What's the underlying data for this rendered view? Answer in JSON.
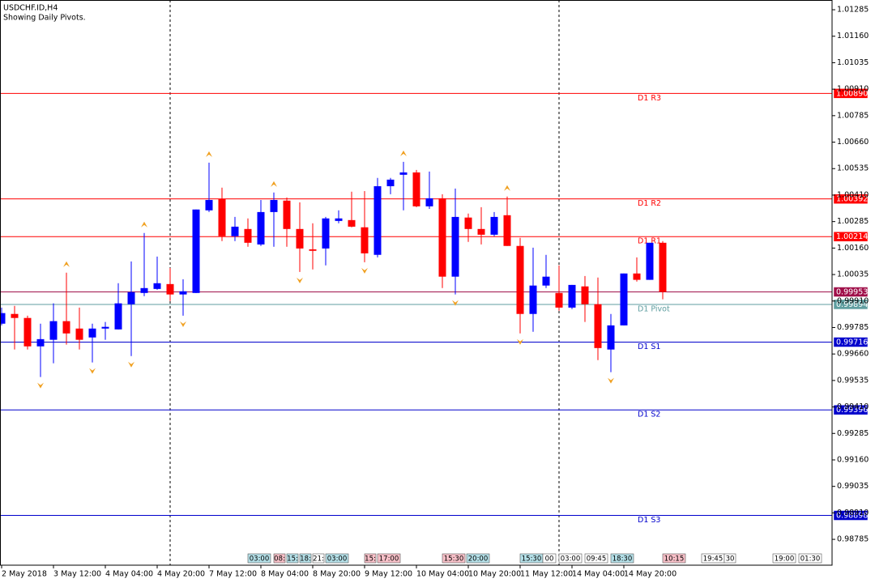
{
  "chart_data": {
    "type": "candlestick",
    "title": "USDCHF.ID,H4",
    "subtitle": "Showing Daily Pivots.",
    "categories": [
      "2 May 2018",
      null,
      null,
      null,
      "3 May 12:00",
      null,
      null,
      null,
      "4 May 04:00",
      null,
      null,
      null,
      "4 May 20:00",
      null,
      null,
      null,
      "7 May 12:00",
      null,
      null,
      null,
      "8 May 04:00",
      null,
      null,
      null,
      "8 May 20:00",
      null,
      null,
      null,
      "9 May 12:00",
      null,
      null,
      null,
      "10 May 04:00",
      null,
      null,
      null,
      "10 May 20:00",
      null,
      null,
      null,
      "11 May 12:00",
      null,
      null,
      null,
      "14 May 04:00",
      null,
      null,
      null,
      "14 May 20:00",
      null,
      null,
      null
    ],
    "open": [
      0.99803,
      0.99849,
      0.9983,
      0.99696,
      0.99727,
      0.99815,
      0.9978,
      0.99738,
      0.9978,
      0.99776,
      0.99895,
      0.99948,
      0.99967,
      0.9999,
      0.99941,
      0.99948,
      1.00338,
      1.00391,
      1.00216,
      1.0025,
      1.00177,
      1.0033,
      1.00384,
      1.0025,
      1.00154,
      1.00158,
      1.00288,
      1.00292,
      1.00258,
      1.00128,
      1.00452,
      1.00506,
      1.00517,
      1.00357,
      1.00395,
      1.00025,
      1.00304,
      1.0025,
      1.00223,
      1.00315,
      1.0017,
      0.99849,
      0.99983,
      0.99948,
      0.99879,
      0.99979,
      0.99895,
      0.99681,
      0.99795,
      1.0004,
      1.0001,
      1.00185
    ],
    "high": [
      0.99879,
      0.99887,
      0.99841,
      0.99803,
      0.99899,
      1.00044,
      0.99879,
      0.99803,
      0.99811,
      0.99994,
      1.00097,
      1.00231,
      1.0012,
      1.00066,
      1.00013,
      1.00342,
      1.00563,
      1.00445,
      1.00307,
      1.003,
      1.00387,
      1.00422,
      1.00399,
      1.00376,
      1.00277,
      1.00307,
      1.00338,
      1.00426,
      1.00429,
      1.00491,
      1.00491,
      1.00567,
      1.00529,
      1.00521,
      1.00414,
      1.00441,
      1.00323,
      1.00353,
      1.0033,
      1.00403,
      1.00208,
      1.00162,
      1.00128,
      1.00078,
      0.99986,
      1.00028,
      1.00021,
      0.99849,
      1.0004,
      1.00116,
      1.00185,
      1.00193
    ],
    "low": [
      0.99795,
      0.99681,
      0.99681,
      0.99551,
      0.99616,
      0.99704,
      0.99681,
      0.9962,
      0.99727,
      0.99776,
      0.9965,
      0.99933,
      0.99963,
      0.9991,
      0.99841,
      0.99948,
      1.0033,
      1.00193,
      1.00193,
      1.00166,
      1.0017,
      1.00166,
      1.00166,
      1.00047,
      1.00059,
      1.00078,
      1.00277,
      1.00258,
      1.00093,
      1.00116,
      1.00414,
      1.00338,
      1.00353,
      1.00345,
      0.99971,
      0.99941,
      1.00189,
      1.00177,
      1.00216,
      1.0017,
      0.99757,
      0.99765,
      0.99971,
      0.99864,
      0.99872,
      0.99811,
      0.99631,
      0.99574,
      0.99795,
      1.00002,
      1.0001,
      0.99918
    ],
    "close": [
      0.99853,
      0.9983,
      0.99696,
      0.9973,
      0.99815,
      0.99757,
      0.99727,
      0.9978,
      0.99788,
      0.99899,
      0.99952,
      0.99971,
      0.99994,
      0.99941,
      0.99956,
      1.00342,
      1.00387,
      1.00216,
      1.00261,
      1.00185,
      1.0033,
      1.00387,
      1.0025,
      1.00158,
      1.00147,
      1.003,
      1.003,
      1.00261,
      1.00135,
      1.00452,
      1.00483,
      1.00517,
      1.00357,
      1.00395,
      1.00025,
      1.00307,
      1.0025,
      1.00223,
      1.00307,
      1.0017,
      0.99849,
      0.99983,
      1.00025,
      0.99879,
      0.99986,
      0.99895,
      0.99688,
      0.99795,
      1.0004,
      1.0001,
      1.00185,
      0.99953
    ],
    "up_color": "#0000ff",
    "down_color": "#ff0000",
    "fractal_color": "#f0a020",
    "ylim": [
      0.98663,
      1.01331
    ],
    "yticks": [
      {
        "value": 1.01285,
        "label": "1.01285"
      },
      {
        "value": 1.0116,
        "label": "1.01160"
      },
      {
        "value": 1.01035,
        "label": "1.01035"
      },
      {
        "value": 1.0091,
        "label": "1.00910"
      },
      {
        "value": 1.00785,
        "label": "1.00785"
      },
      {
        "value": 1.0066,
        "label": "1.00660"
      },
      {
        "value": 1.00535,
        "label": "1.00535"
      },
      {
        "value": 1.0041,
        "label": "1.00410"
      },
      {
        "value": 1.00285,
        "label": "1.00285"
      },
      {
        "value": 1.0016,
        "label": "1.00160"
      },
      {
        "value": 1.00035,
        "label": "1.00035"
      },
      {
        "value": 0.9991,
        "label": "0.99910"
      },
      {
        "value": 0.99785,
        "label": "0.99785"
      },
      {
        "value": 0.9966,
        "label": "0.99660"
      },
      {
        "value": 0.99535,
        "label": "0.99535"
      },
      {
        "value": 0.9941,
        "label": "0.99410"
      },
      {
        "value": 0.99285,
        "label": "0.99285"
      },
      {
        "value": 0.9916,
        "label": "0.99160"
      },
      {
        "value": 0.99035,
        "label": "0.99035"
      },
      {
        "value": 0.9891,
        "label": "0.98910"
      },
      {
        "value": 0.98785,
        "label": "0.98785"
      }
    ],
    "levels": [
      {
        "name": "D1 R3",
        "value": 1.0089,
        "label": "1.00890",
        "color": "#ff0000"
      },
      {
        "name": "D1 R2",
        "value": 1.00392,
        "label": "1.00392",
        "color": "#ff0000"
      },
      {
        "name": "D1 R1",
        "value": 1.00214,
        "label": "1.00214",
        "color": "#ff0000"
      },
      {
        "name": "D1 Pivot",
        "value": 0.99894,
        "label": "0.99894",
        "color": "#5f9ea0"
      },
      {
        "name": "D1 S1",
        "value": 0.99716,
        "label": "0.99716",
        "color": "#0000cc"
      },
      {
        "name": "D1 S2",
        "value": 0.99396,
        "label": "0.99396",
        "color": "#0000cc"
      },
      {
        "name": "D1 S3",
        "value": 0.98898,
        "label": "0.98898",
        "color": "#0000cc"
      }
    ],
    "last_price": {
      "value": 0.99953,
      "label": "0.99953",
      "color": "#a0104a"
    },
    "events": [
      {
        "label": "03:00",
        "color": "#b4e0e8"
      },
      {
        "label": "08:",
        "color": "#f8c0c8"
      },
      {
        "label": "15:",
        "color": "#b4e0e8"
      },
      {
        "label": "18:",
        "color": "#b4e0e8"
      },
      {
        "label": "21:",
        "color": "#ffffff"
      },
      {
        "label": "03:00",
        "color": "#b4e0e8"
      },
      {
        "label": "15:",
        "color": "#f8c0c8"
      },
      {
        "label": "17:00",
        "color": "#f8c0c8"
      },
      {
        "label": "15:30",
        "color": "#f8c0c8"
      },
      {
        "label": "20:00",
        "color": "#b4e0e8"
      },
      {
        "label": "15:30",
        "color": "#b4e0e8"
      },
      {
        "label": "00",
        "color": "#ffffff"
      },
      {
        "label": "03:00",
        "color": "#ffffff"
      },
      {
        "label": "09:45",
        "color": "#ffffff"
      },
      {
        "label": "18:30",
        "color": "#b4e0e8"
      },
      {
        "label": "10:15",
        "color": "#f8c0c8"
      },
      {
        "label": "19:45",
        "color": "#ffffff"
      },
      {
        "label": "30",
        "color": "#ffffff"
      },
      {
        "label": "19:00",
        "color": "#ffffff"
      },
      {
        "label": "01:30",
        "color": "#ffffff"
      }
    ]
  }
}
